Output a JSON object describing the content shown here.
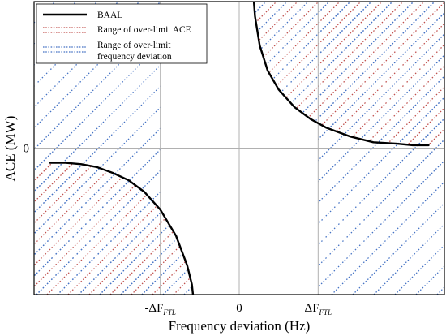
{
  "chart_data": {
    "type": "line",
    "xlabel": "Frequency deviation (Hz)",
    "ylabel": "ACE (MW)",
    "x_ticks": [
      {
        "value": -0.5,
        "base": "-ΔF",
        "sub": "FTL"
      },
      {
        "value": 0,
        "base": "0",
        "sub": ""
      },
      {
        "value": 0.5,
        "base": "ΔF",
        "sub": "FTL"
      }
    ],
    "y_ticks": [
      {
        "value": 0,
        "label": "0"
      }
    ],
    "xlim": [
      -1.3,
      1.3
    ],
    "ylim": [
      -1,
      1
    ],
    "grid": true,
    "legend": {
      "position": "top-left",
      "entries": [
        {
          "label": "BAAL",
          "style": "solid",
          "color": "#000000"
        },
        {
          "label": "Range of over-limit ACE",
          "style": "dotted-double",
          "color": "#c0504d"
        },
        {
          "label": "Range of  over-limit",
          "label2": "frequency deviation",
          "style": "dotted-double",
          "color": "#4472c4"
        }
      ]
    },
    "series": [
      {
        "name": "BAAL",
        "segment": "upper-right",
        "x": [
          0.09,
          0.1,
          0.13,
          0.18,
          0.25,
          0.35,
          0.45,
          0.55,
          0.7,
          0.85,
          1.0,
          1.1,
          1.2
        ],
        "y": [
          1.04,
          0.9,
          0.7,
          0.53,
          0.4,
          0.28,
          0.2,
          0.14,
          0.08,
          0.04,
          0.03,
          0.02,
          0.02
        ]
      },
      {
        "name": "BAAL",
        "segment": "lower-left",
        "x": [
          -1.2,
          -1.1,
          -1.0,
          -0.9,
          -0.8,
          -0.7,
          -0.6,
          -0.5,
          -0.4,
          -0.33,
          -0.3,
          -0.29
        ],
        "y": [
          -0.1,
          -0.1,
          -0.11,
          -0.13,
          -0.17,
          -0.22,
          -0.3,
          -0.42,
          -0.6,
          -0.8,
          -0.93,
          -1.03
        ]
      }
    ],
    "colors": {
      "ace_hatch": "#c0504d",
      "freq_hatch": "#4472c4",
      "grid": "#b0b0b0",
      "frame": "#000000"
    }
  }
}
